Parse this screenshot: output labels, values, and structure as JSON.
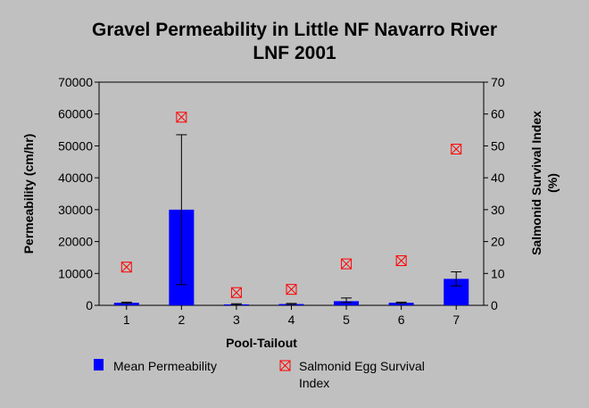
{
  "chart_data": {
    "type": "bar",
    "title": "Gravel Permeability in Little NF Navarro River",
    "subtitle": "LNF 2001",
    "xlabel": "Pool-Tailout",
    "ylabel": "Permeability (cm/hr)",
    "y2label_line1": "Salmonid Survival Index",
    "y2label_line2": "(%)",
    "categories": [
      "1",
      "2",
      "3",
      "4",
      "5",
      "6",
      "7"
    ],
    "ylim": [
      0,
      70000
    ],
    "y_ticks": [
      "0",
      "10000",
      "20000",
      "30000",
      "40000",
      "50000",
      "60000",
      "70000"
    ],
    "y2lim": [
      0,
      70
    ],
    "y2_ticks": [
      "0",
      "10",
      "20",
      "30",
      "40",
      "50",
      "60",
      "70"
    ],
    "grid": false,
    "legend_position": "bottom",
    "series": [
      {
        "name": "Mean Permeability",
        "kind": "bar",
        "axis": "left",
        "color": "#0000ff",
        "values": [
          800,
          30000,
          300,
          400,
          1300,
          800,
          8300
        ],
        "error_low": [
          600,
          6500,
          200,
          250,
          900,
          600,
          6100
        ],
        "error_high": [
          1000,
          53500,
          500,
          600,
          2300,
          1000,
          10500
        ]
      },
      {
        "name": "Salmonid Egg Survival",
        "name_line2": "Index",
        "kind": "marker",
        "axis": "right",
        "color": "#ff0000",
        "values": [
          12,
          59,
          4,
          5,
          13,
          14,
          49
        ]
      }
    ]
  }
}
